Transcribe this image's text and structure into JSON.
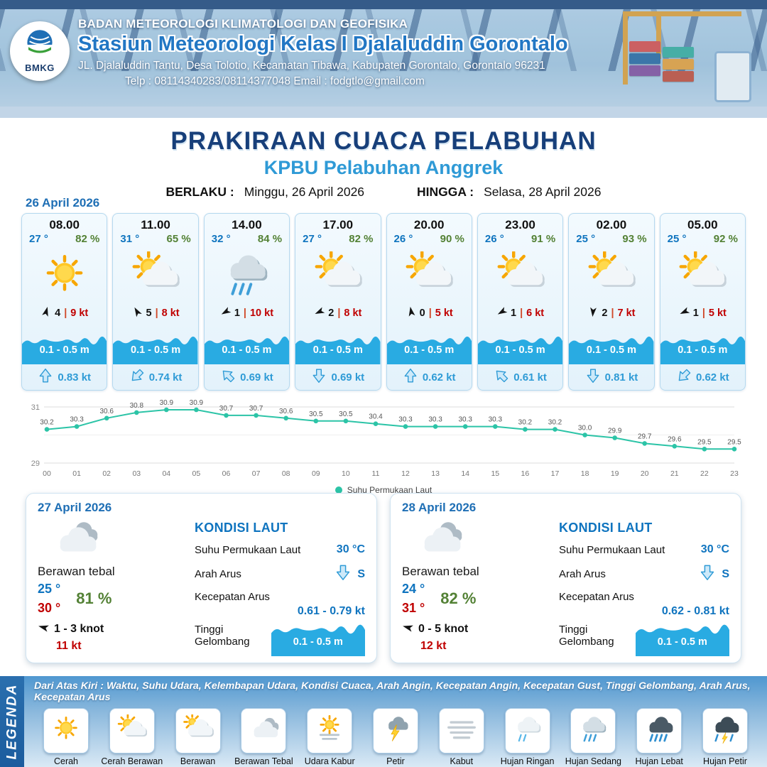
{
  "header": {
    "logo_label": "BMKG",
    "agency": "BADAN METEOROLOGI KLIMATOLOGI DAN GEOFISIKA",
    "station": "Stasiun Meteorologi Kelas I Djalaluddin Gorontalo",
    "address": "JL. Djalaluddin Tantu, Desa Tolotio, Kecamatan Tibawa, Kabupaten Gorontalo, Gorontalo 96231",
    "contact": "Telp : 08114340283/08114377048 Email : fodgtlo@gmail.com"
  },
  "title": {
    "main": "PRAKIRAAN CUACA PELABUHAN",
    "subtitle": "KPBU Pelabuhan Anggrek",
    "valid_from_label": "BERLAKU :",
    "valid_from": "Minggu, 26 April 2026",
    "valid_to_label": "HINGGA :",
    "valid_to": "Selasa, 28 April 2026"
  },
  "colors": {
    "accent_blue": "#0f74bf",
    "light_blue": "#2e9bd6",
    "humidity_green": "#538135",
    "alert_red": "#c00000",
    "wave_blue": "#29abe2",
    "chart_teal": "#2cc4a7"
  },
  "forecast": {
    "date": "26 April 2026",
    "cards": [
      {
        "time": "08.00",
        "temp": "27 °",
        "humidity": "82 %",
        "icon": "cerah",
        "wind_dir_deg": 15,
        "wind_value": "4",
        "wind_speed": "9 kt",
        "wave": "0.1 - 0.5 m",
        "current_dir_deg": 0,
        "current": "0.83 kt"
      },
      {
        "time": "11.00",
        "temp": "31 °",
        "humidity": "65 %",
        "icon": "cerah-berawan",
        "wind_dir_deg": 330,
        "wind_value": "5",
        "wind_speed": "8 kt",
        "wave": "0.1 - 0.5 m",
        "current_dir_deg": 225,
        "current": "0.74 kt"
      },
      {
        "time": "14.00",
        "temp": "32 °",
        "humidity": "84 %",
        "icon": "hujan-sedang",
        "wind_dir_deg": 240,
        "wind_value": "1",
        "wind_speed": "10 kt",
        "wave": "0.1 - 0.5 m",
        "current_dir_deg": 315,
        "current": "0.69 kt"
      },
      {
        "time": "17.00",
        "temp": "27 °",
        "humidity": "82 %",
        "icon": "cerah-berawan",
        "wind_dir_deg": 245,
        "wind_value": "2",
        "wind_speed": "8 kt",
        "wave": "0.1 - 0.5 m",
        "current_dir_deg": 180,
        "current": "0.69 kt"
      },
      {
        "time": "20.00",
        "temp": "26 °",
        "humidity": "90 %",
        "icon": "cerah-berawan",
        "wind_dir_deg": 350,
        "wind_value": "0",
        "wind_speed": "5 kt",
        "wave": "0.1 - 0.5 m",
        "current_dir_deg": 0,
        "current": "0.62 kt"
      },
      {
        "time": "23.00",
        "temp": "26 °",
        "humidity": "91 %",
        "icon": "cerah-berawan",
        "wind_dir_deg": 240,
        "wind_value": "1",
        "wind_speed": "6 kt",
        "wave": "0.1 - 0.5 m",
        "current_dir_deg": 315,
        "current": "0.61 kt"
      },
      {
        "time": "02.00",
        "temp": "25 °",
        "humidity": "93 %",
        "icon": "cerah-berawan",
        "wind_dir_deg": 185,
        "wind_value": "2",
        "wind_speed": "7 kt",
        "wave": "0.1 - 0.5 m",
        "current_dir_deg": 180,
        "current": "0.81 kt"
      },
      {
        "time": "05.00",
        "temp": "25 °",
        "humidity": "92 %",
        "icon": "cerah-berawan",
        "wind_dir_deg": 245,
        "wind_value": "1",
        "wind_speed": "5 kt",
        "wave": "0.1 - 0.5 m",
        "current_dir_deg": 225,
        "current": "0.62 kt"
      }
    ]
  },
  "chart_data": {
    "type": "line",
    "series_name": "Suhu Permukaan Laut",
    "x": [
      "00",
      "01",
      "02",
      "03",
      "04",
      "05",
      "06",
      "07",
      "08",
      "09",
      "10",
      "11",
      "12",
      "13",
      "14",
      "15",
      "16",
      "17",
      "18",
      "19",
      "20",
      "21",
      "22",
      "23"
    ],
    "values": [
      30.2,
      30.3,
      30.6,
      30.8,
      30.9,
      30.9,
      30.7,
      30.7,
      30.6,
      30.5,
      30.5,
      30.4,
      30.3,
      30.3,
      30.3,
      30.3,
      30.2,
      30.2,
      30.0,
      29.9,
      29.7,
      29.6,
      29.5,
      29.5
    ],
    "ylim": [
      29,
      31
    ],
    "ylabel": "",
    "xlabel": "",
    "grid": true,
    "line_color": "#2cc4a7",
    "legend_position": "bottom"
  },
  "daily": [
    {
      "date": "27 April 2026",
      "icon": "berawan-tebal",
      "condition": "Berawan tebal",
      "temp_min": "25 °",
      "humidity": "81 %",
      "temp_max": "30 °",
      "wind_dir_deg": 285,
      "wind_range": "1  - 3 knot",
      "gust": "11 kt",
      "sea_title": "KONDISI LAUT",
      "sst_label": "Suhu Permukaan Laut",
      "sst": "30 °C",
      "current_dir_label": "Arah Arus",
      "current_dir_deg": 180,
      "current_dir": "S",
      "current_speed_label": "Kecepatan Arus",
      "current_speed": "0.61  - 0.79 kt",
      "wave_label": "Tinggi Gelombang",
      "wave": "0.1 - 0.5 m"
    },
    {
      "date": "28 April 2026",
      "icon": "berawan-tebal",
      "condition": "Berawan tebal",
      "temp_min": "24 °",
      "humidity": "82 %",
      "temp_max": "31 °",
      "wind_dir_deg": 285,
      "wind_range": "0  - 5 knot",
      "gust": "12 kt",
      "sea_title": "KONDISI LAUT",
      "sst_label": "Suhu Permukaan Laut",
      "sst": "30 °C",
      "current_dir_label": "Arah Arus",
      "current_dir_deg": 180,
      "current_dir": "S",
      "current_speed_label": "Kecepatan Arus",
      "current_speed": "0.62  - 0.81 kt",
      "wave_label": "Tinggi Gelombang",
      "wave": "0.1 - 0.5 m"
    }
  ],
  "legend": {
    "title": "LEGENDA",
    "description": "Dari Atas Kiri : Waktu, Suhu Udara, Kelembapan Udara, Kondisi Cuaca, Arah Angin, Kecepatan Angin, Kecepatan Gust, Tinggi Gelombang, Arah Arus, Kecepatan Arus",
    "items": [
      {
        "label": "Cerah",
        "icon": "cerah"
      },
      {
        "label": "Cerah Berawan",
        "icon": "cerah-berawan"
      },
      {
        "label": "Berawan",
        "icon": "berawan"
      },
      {
        "label": "Berawan Tebal",
        "icon": "berawan-tebal"
      },
      {
        "label": "Udara Kabur",
        "icon": "udara-kabur"
      },
      {
        "label": "Petir",
        "icon": "petir"
      },
      {
        "label": "Kabut",
        "icon": "kabut"
      },
      {
        "label": "Hujan Ringan",
        "icon": "hujan-ringan"
      },
      {
        "label": "Hujan Sedang",
        "icon": "hujan-sedang"
      },
      {
        "label": "Hujan Lebat",
        "icon": "hujan-lebat"
      },
      {
        "label": "Hujan Petir",
        "icon": "hujan-petir"
      }
    ]
  }
}
